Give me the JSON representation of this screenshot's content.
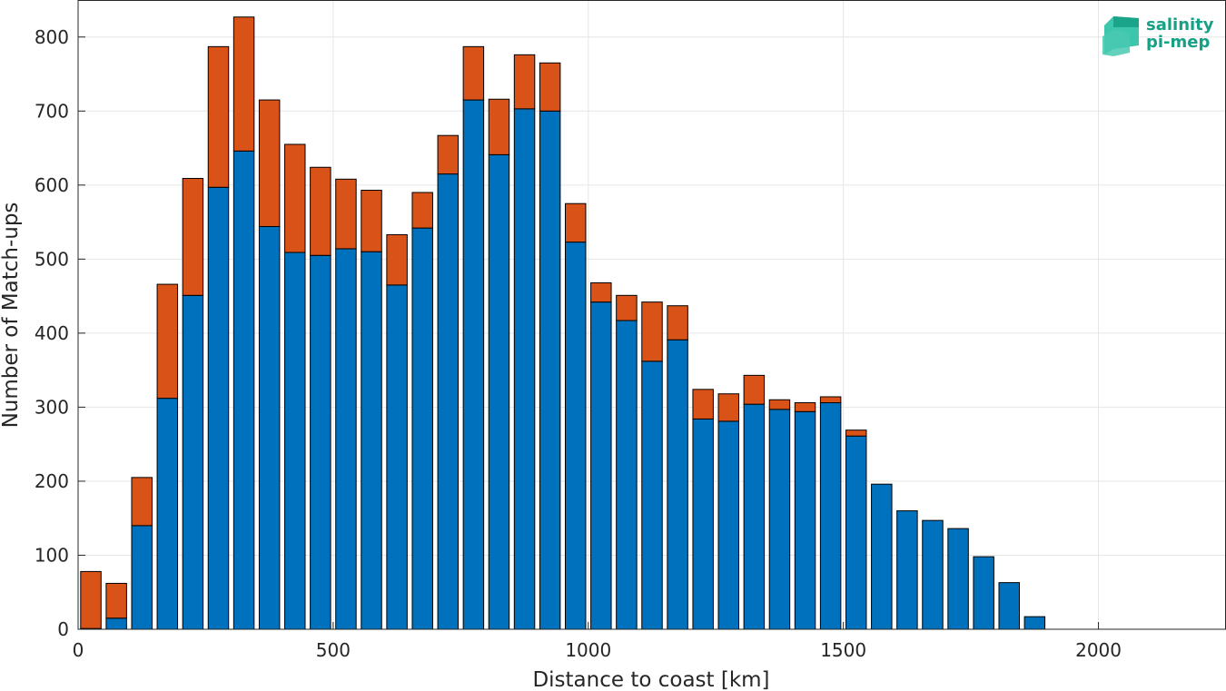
{
  "logo": {
    "line1": "salinity",
    "line2": "pi-mep"
  },
  "chart_data": {
    "type": "bar",
    "stacked": true,
    "xlabel": "Distance to coast [km]",
    "ylabel": "Number of Match-ups",
    "xlim": [
      0,
      2250
    ],
    "ylim": [
      0,
      850
    ],
    "xticks": [
      0,
      500,
      1000,
      1500,
      2000
    ],
    "yticks": [
      0,
      100,
      200,
      300,
      400,
      500,
      600,
      700,
      800
    ],
    "grid": true,
    "bin_width_km": 50,
    "bar_width_fraction": 0.8,
    "x": [
      25,
      75,
      125,
      175,
      225,
      275,
      325,
      375,
      425,
      475,
      525,
      575,
      625,
      675,
      725,
      775,
      825,
      875,
      925,
      975,
      1025,
      1075,
      1125,
      1175,
      1225,
      1275,
      1325,
      1375,
      1425,
      1475,
      1525,
      1575,
      1625,
      1675,
      1725,
      1775,
      1825,
      1875
    ],
    "series": [
      {
        "color": "#0072bd",
        "values": [
          1,
          15,
          140,
          312,
          451,
          597,
          646,
          544,
          509,
          505,
          514,
          510,
          465,
          542,
          615,
          715,
          641,
          703,
          700,
          523,
          442,
          417,
          362,
          391,
          284,
          281,
          304,
          297,
          294,
          306,
          261,
          196,
          160,
          147,
          136,
          98,
          63,
          17
        ]
      },
      {
        "color": "#d95319",
        "values": [
          77,
          47,
          65,
          154,
          158,
          190,
          181,
          171,
          146,
          119,
          94,
          83,
          68,
          48,
          52,
          72,
          75,
          73,
          65,
          52,
          26,
          34,
          80,
          46,
          40,
          37,
          39,
          13,
          12,
          8,
          8,
          0,
          0,
          0,
          0,
          0,
          0,
          0
        ]
      }
    ]
  }
}
